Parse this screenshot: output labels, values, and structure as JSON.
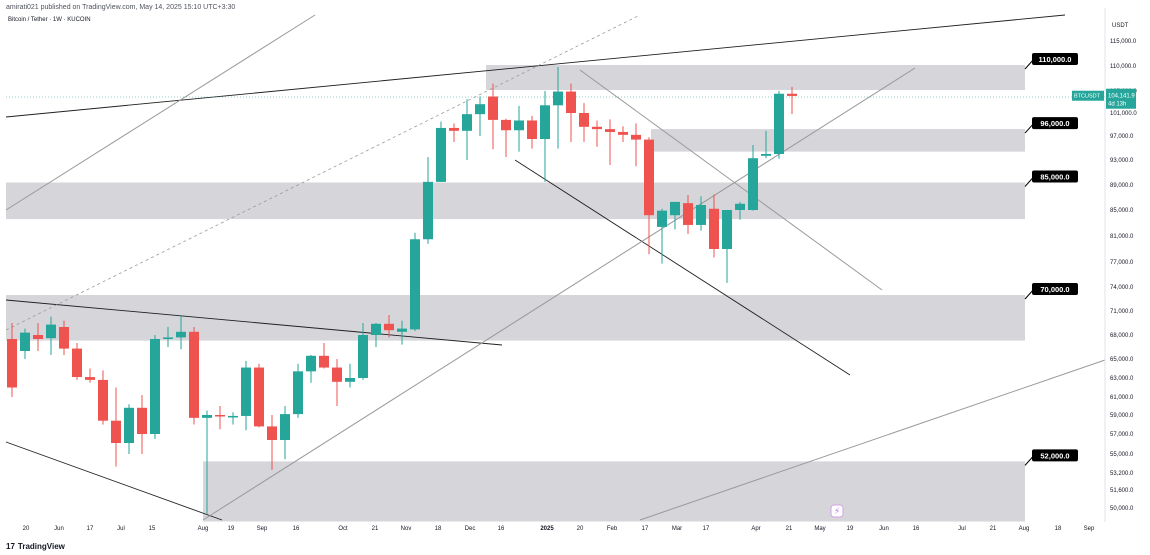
{
  "header": {
    "published": "amirati021 published on TradingView.com, May 14, 2025 15:10 UTC+3:30",
    "symbol": "Bitcoin / Tether · 1W · KUCOIN"
  },
  "footer": {
    "brand": "TradingView",
    "logo_icon": "tradingview-logo-icon"
  },
  "colors": {
    "up": "#26a69a",
    "down": "#ef5350",
    "zone": "#d1d2d6",
    "trend": "#202020",
    "trend_light": "#9a9a9a",
    "price_tag": "#26a69a",
    "label_bg": "#000000",
    "label_text": "#ffffff"
  },
  "chart_data": {
    "type": "candlestick",
    "currency": "USDT",
    "y_axis_labels": [
      "115,000.0",
      "110,000.0",
      "105,000.0",
      "101,000.0",
      "97,000.0",
      "93,000.0",
      "89,000.0",
      "85,000.0",
      "81,000.0",
      "77,000.0",
      "74,000.0",
      "71,000.0",
      "68,000.0",
      "65,000.0",
      "63,000.0",
      "61,000.0",
      "59,000.0",
      "57,000.0",
      "55,000.0",
      "53,200.0",
      "51,600.0",
      "50,000.0"
    ],
    "x_axis_labels": [
      "20",
      "Jun",
      "17",
      "Jul",
      "15",
      "Aug",
      "19",
      "Sep",
      "16",
      "Oct",
      "21",
      "Nov",
      "18",
      "Dec",
      "16",
      "2025",
      "20",
      "Feb",
      "17",
      "Mar",
      "17",
      "Apr",
      "21",
      "May",
      "19",
      "Jun",
      "16",
      "Jul",
      "21",
      "Aug",
      "18",
      "Sep"
    ],
    "zones": [
      {
        "label": "110,000.0",
        "low": 105200,
        "high": 110200
      },
      {
        "label": "96,000.0",
        "low": 94400,
        "high": 98200
      },
      {
        "label": "85,000.0",
        "low": 83600,
        "high": 89400
      },
      {
        "label": "70,000.0",
        "low": 67300,
        "high": 73000
      },
      {
        "label": "52,000.0",
        "low": 48800,
        "high": 54300
      }
    ],
    "last_price": {
      "symbol": "BTCUSDT",
      "value": "104,141.9",
      "countdown": "4d 13h",
      "price": 104141.9
    },
    "candles": [
      [
        67500,
        69500,
        61000,
        62000
      ],
      [
        66000,
        68800,
        65000,
        68300
      ],
      [
        68000,
        69500,
        66000,
        67500
      ],
      [
        67600,
        70300,
        65500,
        69300
      ],
      [
        69000,
        69800,
        65500,
        66300
      ],
      [
        66300,
        67000,
        62800,
        63100
      ],
      [
        63100,
        64000,
        62500,
        62800
      ],
      [
        62800,
        63800,
        58000,
        58400
      ],
      [
        58400,
        62000,
        53800,
        56100
      ],
      [
        56100,
        60200,
        55000,
        59800
      ],
      [
        59800,
        61200,
        55000,
        57000
      ],
      [
        57000,
        68000,
        56500,
        67500
      ],
      [
        67500,
        69000,
        66500,
        67700
      ],
      [
        67700,
        70500,
        66200,
        68400
      ],
      [
        68400,
        69000,
        58000,
        58700
      ],
      [
        58700,
        59500,
        49500,
        59000
      ],
      [
        59000,
        60000,
        57500,
        58900
      ],
      [
        58800,
        59300,
        58000,
        58900
      ],
      [
        58900,
        64800,
        57400,
        64100
      ],
      [
        64100,
        64500,
        57700,
        57800
      ],
      [
        57800,
        59000,
        53500,
        56400
      ],
      [
        56400,
        60000,
        54500,
        59100
      ],
      [
        59100,
        64500,
        58700,
        63700
      ],
      [
        63700,
        65500,
        62500,
        65400
      ],
      [
        65400,
        67000,
        64000,
        64100
      ],
      [
        64100,
        65000,
        60000,
        62600
      ],
      [
        62600,
        64500,
        62000,
        63000
      ],
      [
        63000,
        69500,
        62800,
        68000
      ],
      [
        68000,
        69500,
        66500,
        69400
      ],
      [
        69400,
        70500,
        67700,
        68600
      ],
      [
        68400,
        69800,
        66800,
        68800
      ],
      [
        68700,
        81500,
        68500,
        80500
      ],
      [
        80500,
        93500,
        79800,
        89500
      ],
      [
        89500,
        99500,
        89500,
        98400
      ],
      [
        98400,
        99200,
        96000,
        97900
      ],
      [
        97900,
        103500,
        93000,
        100800
      ],
      [
        100800,
        104000,
        97000,
        102600
      ],
      [
        104000,
        106500,
        94800,
        99800
      ],
      [
        99800,
        100000,
        93500,
        98000
      ],
      [
        98000,
        102300,
        94400,
        99700
      ],
      [
        99700,
        100500,
        94900,
        96500
      ],
      [
        96500,
        105000,
        89500,
        102400
      ],
      [
        102400,
        109800,
        94900,
        104900
      ],
      [
        104900,
        106500,
        96000,
        101000
      ],
      [
        101000,
        102800,
        96000,
        98600
      ],
      [
        98600,
        99700,
        95200,
        98200
      ],
      [
        98200,
        99900,
        92200,
        97700
      ],
      [
        97700,
        98700,
        96000,
        97200
      ],
      [
        97200,
        99200,
        92000,
        96400
      ],
      [
        96400,
        96800,
        78200,
        84200
      ],
      [
        82400,
        85200,
        76800,
        84900
      ],
      [
        84200,
        85800,
        82000,
        86300
      ],
      [
        86100,
        87400,
        81300,
        82700
      ],
      [
        82700,
        87200,
        81800,
        85800
      ],
      [
        85200,
        87500,
        77700,
        79000
      ],
      [
        79000,
        85000,
        74500,
        85000
      ],
      [
        85000,
        86300,
        83500,
        86000
      ],
      [
        85000,
        95500,
        84900,
        93300
      ],
      [
        93700,
        97900,
        93300,
        94000
      ],
      [
        94000,
        105000,
        93200,
        104500
      ],
      [
        104500,
        105800,
        100800,
        104100
      ]
    ]
  }
}
